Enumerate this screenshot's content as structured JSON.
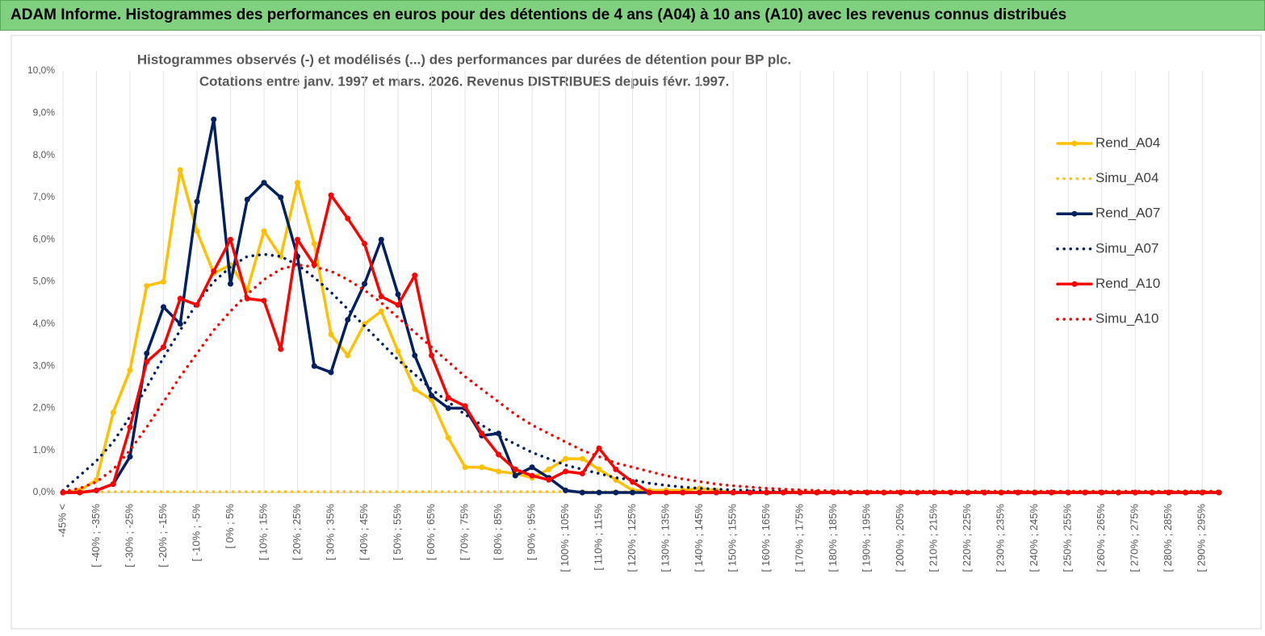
{
  "chart_data": {
    "type": "line",
    "header": "ADAM Informe. Histogrammes des performances en euros pour des détentions de 4 ans (A04) à 10 ans (A10) avec les revenus connus distribués",
    "title": "Histogrammes observés (-) et modélisés (...) des performances par durées de détention pour BP plc.",
    "subtitle": "Cotations entre janv. 1997 et mars. 2026. Revenus DISTRIBUES depuis févr. 1997.",
    "categories": [
      "-45% <",
      null,
      "[ -40% ; -35%",
      null,
      "[ -30% ; -25%",
      null,
      "[ -20% ; -15%",
      null,
      "[ -10% ; -5%",
      null,
      "[ 0% ; 5%",
      null,
      "[ 10% ; 15%",
      null,
      "[ 20% ; 25%",
      null,
      "[ 30% ; 35%",
      null,
      "[ 40% ; 45%",
      null,
      "[ 50% ; 55%",
      null,
      "[ 60% ; 65%",
      null,
      "[ 70% ; 75%",
      null,
      "[ 80% ; 85%",
      null,
      "[ 90% ; 95%",
      null,
      "[ 100% ; 105%",
      null,
      "[ 110% ; 115%",
      null,
      "[ 120% ; 125%",
      null,
      "[ 130% ; 135%",
      null,
      "[ 140% ; 145%",
      null,
      "[ 150% ; 155%",
      null,
      "[ 160% ; 165%",
      null,
      "[ 170% ; 175%",
      null,
      "[ 180% ; 185%",
      null,
      "[ 190% ; 195%",
      null,
      "[ 200% ; 205%",
      null,
      "[ 210% ; 215%",
      null,
      "[ 220% ; 225%",
      null,
      "[ 230% ; 235%",
      null,
      "[ 240% ; 245%",
      null,
      "[ 250% ; 255%",
      null,
      "[ 260% ; 265%",
      null,
      "[ 270% ; 275%",
      null,
      "[ 280% ; 285%",
      null,
      "[ 290% ; 295%",
      null
    ],
    "ylim": [
      0,
      10
    ],
    "yticks": [
      {
        "value": 0,
        "label": "0,0%"
      },
      {
        "value": 1,
        "label": "1,0%"
      },
      {
        "value": 2,
        "label": "2,0%"
      },
      {
        "value": 3,
        "label": "3,0%"
      },
      {
        "value": 4,
        "label": "4,0%"
      },
      {
        "value": 5,
        "label": "5,0%"
      },
      {
        "value": 6,
        "label": "6,0%"
      },
      {
        "value": 7,
        "label": "7,0%"
      },
      {
        "value": 8,
        "label": "8,0%"
      },
      {
        "value": 9,
        "label": "9,0%"
      },
      {
        "value": 10,
        "label": "10,0%"
      }
    ],
    "grid": "x",
    "legend": "right",
    "series": [
      {
        "name": "Rend_A04",
        "color": "#ffc000",
        "style": "solid",
        "marker": true,
        "values": [
          0,
          0.05,
          0.3,
          1.9,
          2.9,
          4.9,
          5.0,
          7.65,
          6.2,
          5.2,
          5.4,
          4.8,
          6.2,
          5.6,
          7.35,
          5.9,
          3.75,
          3.25,
          4.0,
          4.3,
          3.35,
          2.45,
          2.2,
          1.3,
          0.6,
          0.6,
          0.5,
          0.45,
          0.35,
          0.55,
          0.8,
          0.8,
          0.55,
          0.3,
          0.05,
          0.05,
          0.05,
          0.05,
          0.1,
          0.05,
          0,
          0,
          0,
          0,
          0,
          0,
          0,
          0,
          0,
          0,
          0,
          0,
          0,
          0,
          0,
          0,
          0,
          0,
          0,
          0,
          0,
          0,
          0,
          0,
          0,
          0,
          0,
          0,
          0,
          0
        ]
      },
      {
        "name": "Simu_A04",
        "color": "#ffc000",
        "style": "dotted",
        "marker": false,
        "values": [
          0.02,
          0.02,
          0.02,
          0.02,
          0.02,
          0.02,
          0.02,
          0.02,
          0.02,
          0.02,
          0.02,
          0.02,
          0.02,
          0.02,
          0.02,
          0.02,
          0.02,
          0.02,
          0.02,
          0.02,
          0.02,
          0.02,
          0.02,
          0.02,
          0.02,
          0.02,
          0.02,
          0.02,
          0.02,
          0.02,
          0.02,
          0.02,
          0.02,
          0.02,
          0.02,
          0.02,
          0.02,
          0.02,
          0.02,
          0.02,
          0.02,
          0.02,
          0.02,
          0.02,
          0.02,
          0.02,
          0.02,
          0.02,
          0.02,
          0.02,
          0.02,
          0.02,
          0.02,
          0.02,
          0.02,
          0.02,
          0.02,
          0.02,
          0.02,
          0.02,
          0.02,
          0.02,
          0.02,
          0.02,
          0.02,
          0.02,
          0.02,
          0.02,
          0.02,
          0.02
        ]
      },
      {
        "name": "Rend_A07",
        "color": "#002060",
        "style": "solid",
        "marker": true,
        "values": [
          0,
          0,
          0.05,
          0.2,
          0.85,
          3.3,
          4.4,
          4.0,
          6.9,
          8.85,
          4.95,
          6.95,
          7.35,
          7.0,
          5.6,
          3.0,
          2.85,
          4.1,
          4.95,
          6.0,
          4.7,
          3.25,
          2.3,
          2.0,
          2.0,
          1.35,
          1.4,
          0.4,
          0.6,
          0.35,
          0.05,
          0,
          0,
          0,
          0,
          0,
          0,
          0,
          0,
          0,
          0,
          0,
          0,
          0,
          0,
          0,
          0,
          0,
          0,
          0,
          0,
          0,
          0,
          0,
          0,
          0,
          0,
          0,
          0,
          0,
          0,
          0,
          0,
          0,
          0,
          0,
          0,
          0,
          0,
          0
        ]
      },
      {
        "name": "Simu_A07",
        "color": "#002060",
        "style": "dotted",
        "marker": false,
        "values": [
          0.05,
          0.4,
          0.75,
          1.2,
          1.8,
          2.5,
          3.2,
          3.85,
          4.5,
          5.0,
          5.35,
          5.6,
          5.65,
          5.6,
          5.4,
          5.1,
          4.75,
          4.35,
          3.95,
          3.55,
          3.15,
          2.8,
          2.45,
          2.15,
          1.85,
          1.6,
          1.35,
          1.15,
          0.95,
          0.8,
          0.65,
          0.55,
          0.45,
          0.35,
          0.3,
          0.22,
          0.17,
          0.13,
          0.1,
          0.08,
          0.06,
          0.05,
          0.04,
          0.03,
          0.02,
          0.02,
          0.02,
          0.02,
          0.02,
          0.02,
          0.02,
          0.02,
          0.02,
          0.02,
          0.02,
          0.02,
          0.02,
          0.02,
          0.02,
          0.02,
          0.02,
          0.02,
          0.02,
          0.02,
          0.02,
          0.02,
          0.02,
          0.02,
          0.02,
          0.02
        ]
      },
      {
        "name": "Rend_A10",
        "color": "#ff0000",
        "style": "solid",
        "marker": true,
        "values": [
          0,
          0,
          0.05,
          0.2,
          1.55,
          3.1,
          3.45,
          4.6,
          4.45,
          5.25,
          6.0,
          4.6,
          4.55,
          3.4,
          6.0,
          5.4,
          7.05,
          6.5,
          5.9,
          4.65,
          4.45,
          5.15,
          3.25,
          2.25,
          2.05,
          1.4,
          0.9,
          0.55,
          0.4,
          0.3,
          0.5,
          0.45,
          1.05,
          0.55,
          0.25,
          0,
          0,
          0,
          0,
          0,
          0,
          0,
          0,
          0,
          0,
          0,
          0,
          0,
          0,
          0,
          0,
          0,
          0,
          0,
          0,
          0,
          0,
          0,
          0,
          0,
          0,
          0,
          0,
          0,
          0,
          0,
          0,
          0,
          0,
          0
        ]
      },
      {
        "name": "Simu_A10",
        "color": "#ff0000",
        "style": "dotted",
        "marker": false,
        "values": [
          0.02,
          0.1,
          0.25,
          0.55,
          1.0,
          1.55,
          2.15,
          2.75,
          3.3,
          3.85,
          4.3,
          4.7,
          5.05,
          5.3,
          5.4,
          5.35,
          5.25,
          5.05,
          4.8,
          4.5,
          4.15,
          3.8,
          3.45,
          3.1,
          2.75,
          2.45,
          2.15,
          1.85,
          1.6,
          1.4,
          1.2,
          1.0,
          0.85,
          0.7,
          0.6,
          0.5,
          0.4,
          0.32,
          0.26,
          0.2,
          0.16,
          0.13,
          0.1,
          0.08,
          0.06,
          0.05,
          0.04,
          0.03,
          0.03,
          0.03,
          0.03,
          0.03,
          0.03,
          0.03,
          0.03,
          0.03,
          0.03,
          0.03,
          0.03,
          0.03,
          0.03,
          0.03,
          0.03,
          0.03,
          0.03,
          0.03,
          0.03,
          0.03,
          0.03,
          0.03
        ]
      }
    ]
  }
}
